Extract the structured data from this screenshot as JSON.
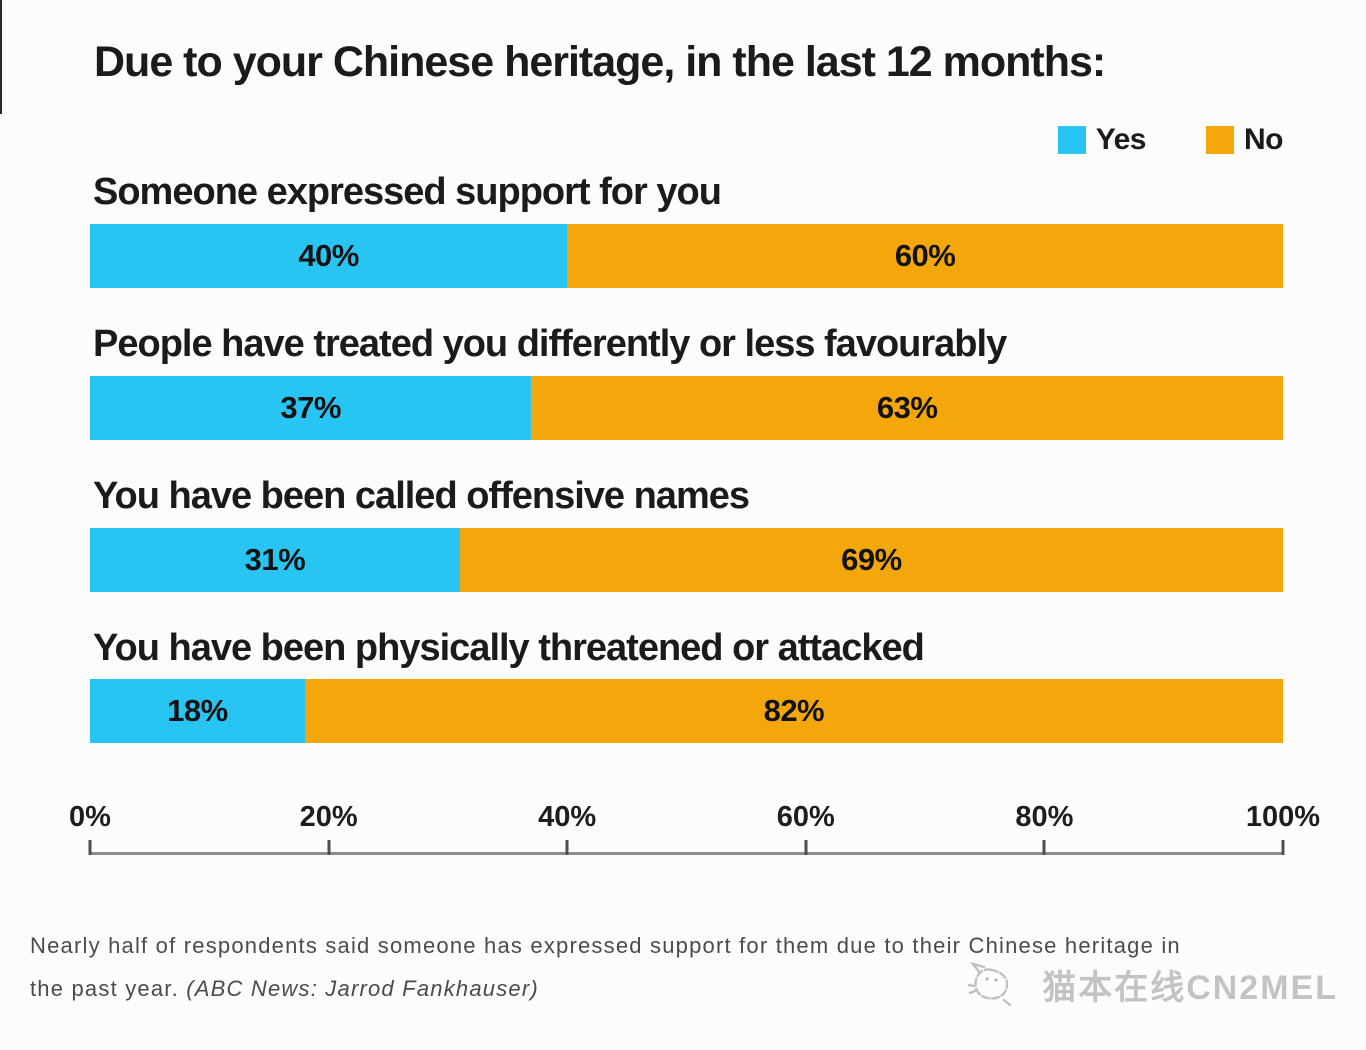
{
  "chart_data": {
    "type": "bar",
    "variant": "horizontal-stacked",
    "title": "Due to your Chinese heritage, in the last 12 months:",
    "categories": [
      "Someone expressed support for you",
      "People have treated you differently or less favourably",
      "You have been called offensive names",
      "You have been physically threatened or attacked"
    ],
    "series": [
      {
        "name": "Yes",
        "color": "#29c5f2",
        "values": [
          40,
          37,
          31,
          18
        ]
      },
      {
        "name": "No",
        "color": "#f3a70b",
        "values": [
          60,
          63,
          69,
          82
        ]
      }
    ],
    "x_ticks": [
      "0%",
      "20%",
      "40%",
      "60%",
      "80%",
      "100%"
    ],
    "xlim": [
      0,
      100
    ],
    "grid": false,
    "legend_position": "top-right",
    "value_suffix": "%"
  },
  "caption": {
    "line1": "Nearly half of respondents said someone has expressed support for them due to their Chinese heritage in",
    "line2_prefix": "the past year. ",
    "credit": "(ABC News: Jarrod Fankhauser)"
  },
  "watermark": {
    "text": "猫本在线CN2MEL",
    "icon": "cat-logo"
  }
}
